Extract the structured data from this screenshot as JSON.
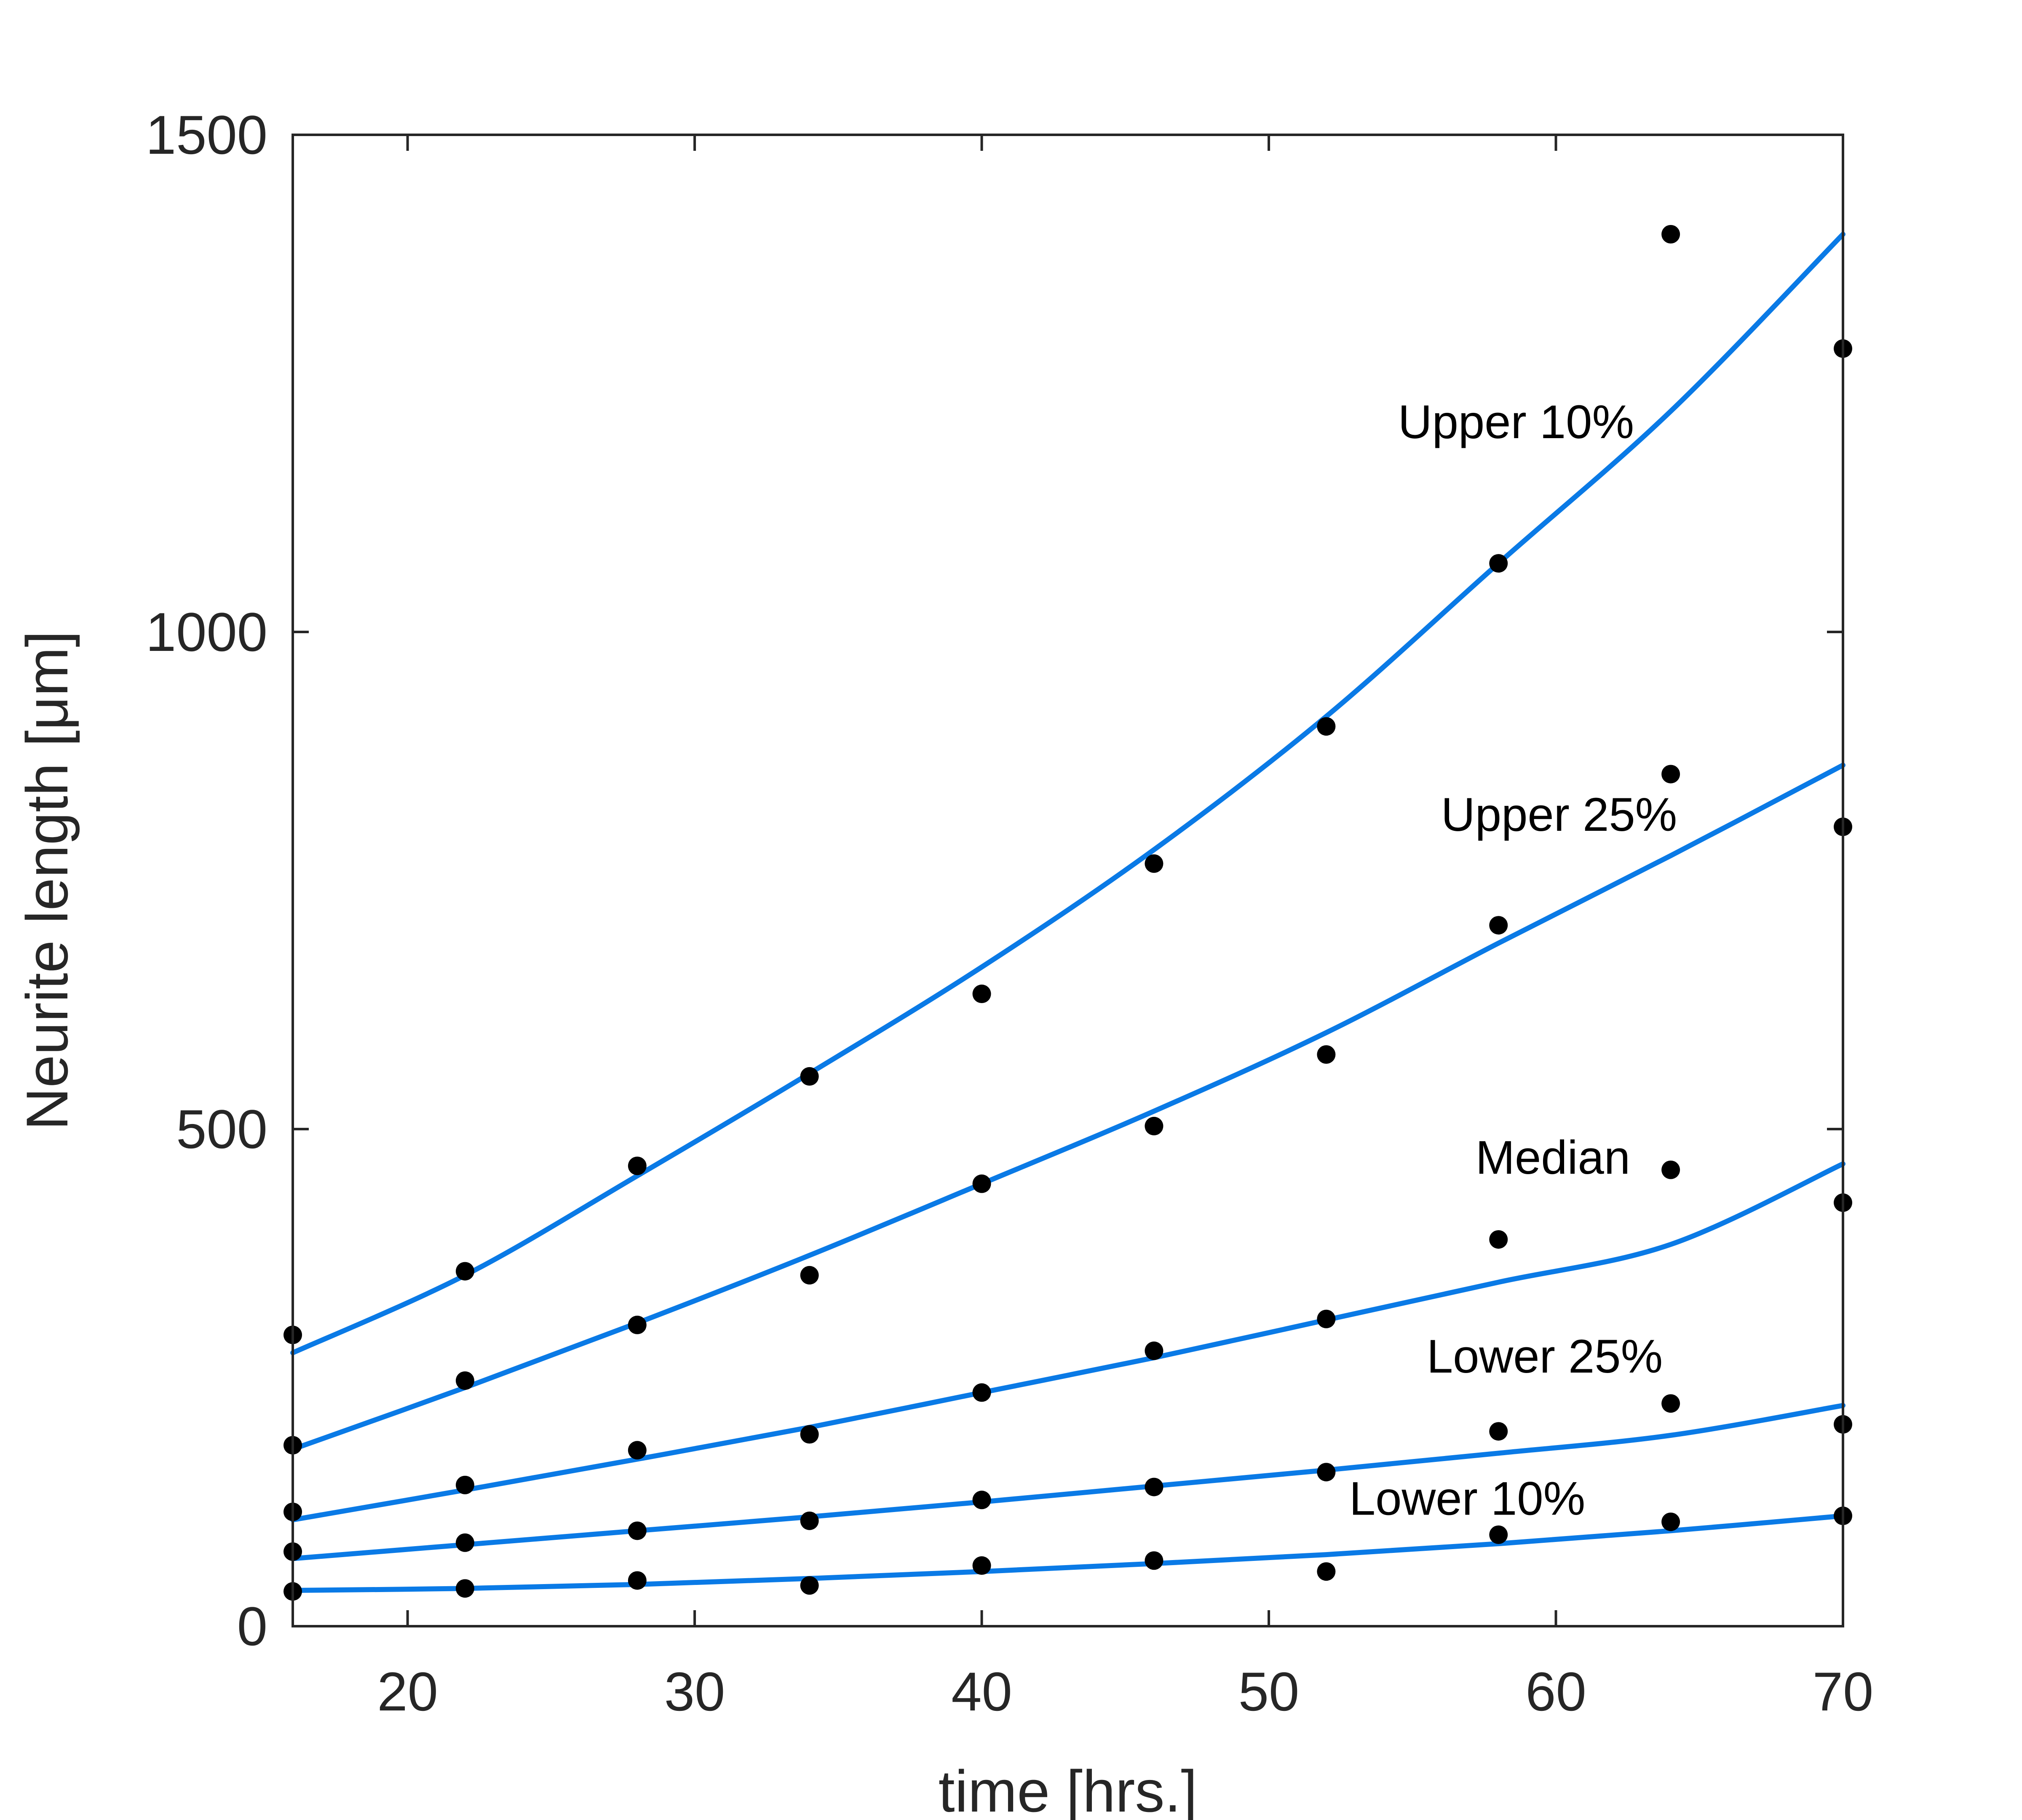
{
  "chart_data": {
    "type": "scatter",
    "xlabel": "time [hrs.]",
    "ylabel": "Neurite length [μm]",
    "xlim": [
      16,
      70
    ],
    "ylim": [
      0,
      1500
    ],
    "xticks": [
      20,
      30,
      40,
      50,
      60,
      70
    ],
    "yticks": [
      0,
      500,
      1000,
      1500
    ],
    "grid": false,
    "legend": "none",
    "fit_color": "#0a7ae6",
    "point_color": "#000000",
    "x": [
      16,
      22,
      28,
      34,
      40,
      46,
      52,
      58,
      64,
      70
    ],
    "series": [
      {
        "name": "Upper 10%",
        "label_anchor": [
          54.5,
          1195
        ],
        "values": [
          293,
          357,
          463,
          553,
          636,
          767,
          905,
          1069,
          1400,
          1285
        ],
        "fit": [
          275,
          353,
          453,
          556,
          663,
          781,
          915,
          1069,
          1222,
          1400
        ]
      },
      {
        "name": "Upper 25%",
        "label_anchor": [
          56,
          800
        ],
        "values": [
          182,
          247,
          303,
          353,
          445,
          503,
          575,
          705,
          857,
          804
        ],
        "fit": [
          178,
          240,
          305,
          373,
          445,
          518,
          597,
          687,
          775,
          866
        ]
      },
      {
        "name": "Median",
        "label_anchor": [
          57.2,
          455
        ],
        "values": [
          115,
          142,
          177,
          193,
          235,
          277,
          309,
          389,
          459,
          426
        ],
        "fit": [
          107,
          137,
          168,
          200,
          235,
          270,
          308,
          346,
          384,
          465
        ]
      },
      {
        "name": "Lower 25%",
        "label_anchor": [
          55.5,
          255
        ],
        "values": [
          75,
          84,
          96,
          106,
          127,
          140,
          155,
          196,
          224,
          203
        ],
        "fit": [
          68,
          82,
          96,
          110,
          125,
          141,
          157,
          174,
          192,
          222
        ]
      },
      {
        "name": "Lower 10%",
        "label_anchor": [
          52.8,
          112
        ],
        "values": [
          35,
          38,
          46,
          41,
          61,
          66,
          55,
          92,
          105,
          111
        ],
        "fit": [
          36,
          38,
          42,
          48,
          55,
          63,
          72,
          83,
          96,
          111
        ]
      }
    ]
  }
}
